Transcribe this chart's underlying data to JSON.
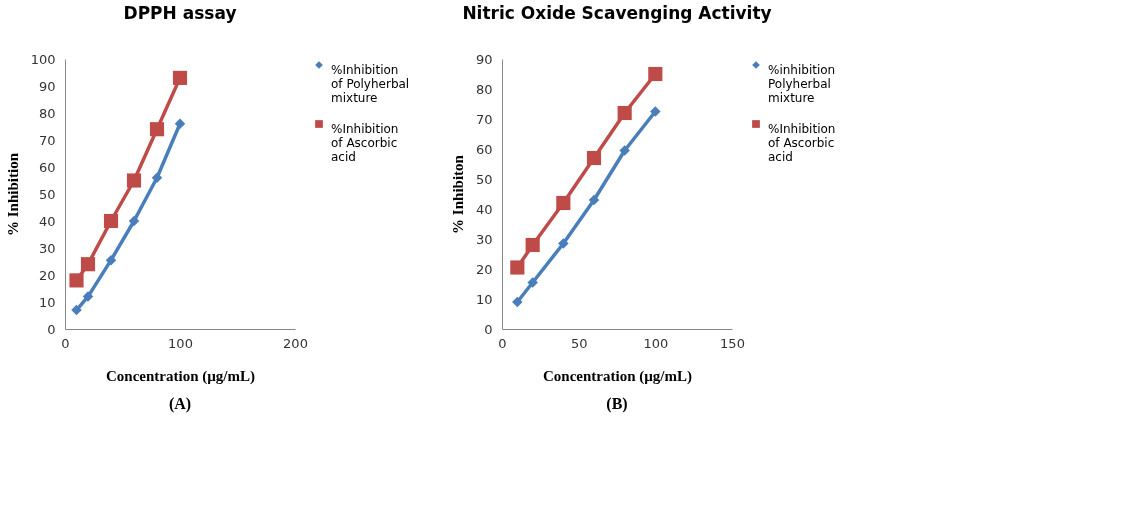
{
  "chart_data": [
    {
      "type": "line",
      "title": "DPPH assay",
      "xlabel": "Concentration (µg/mL)",
      "ylabel": "% Inhibition",
      "x": [
        10,
        20,
        40,
        60,
        80,
        100
      ],
      "series": [
        {
          "name": "%Inhibition of Polyherbal mixture",
          "color": "#4a7ebb",
          "marker": "diamond",
          "values": [
            7,
            12,
            25.5,
            40,
            56,
            76
          ]
        },
        {
          "name": "%Inhibition of Ascorbic acid",
          "color": "#be4b48",
          "marker": "square",
          "values": [
            18,
            24,
            40,
            55,
            74,
            93
          ]
        }
      ],
      "xlim": [
        0,
        200
      ],
      "xticks": [
        0,
        100,
        200
      ],
      "ylim": [
        0,
        100
      ],
      "yticks": [
        0,
        10,
        20,
        30,
        40,
        50,
        60,
        70,
        80,
        90,
        100
      ],
      "grid": false,
      "legend": "right",
      "line_style": "solid",
      "annotations": [
        "(A)"
      ]
    },
    {
      "type": "line",
      "title": "Nitric Oxide Scavenging Activity",
      "xlabel": "Concentration (µg/mL)",
      "ylabel": "% Inhibiton",
      "x": [
        10,
        20,
        40,
        60,
        80,
        100
      ],
      "series": [
        {
          "name": "%inhibition Polyherbal mixture",
          "color": "#4a7ebb",
          "marker": "diamond",
          "values": [
            9,
            15.5,
            28.5,
            43,
            59.5,
            72.5
          ]
        },
        {
          "name": "%Inhibition of Ascorbic acid",
          "color": "#be4b48",
          "marker": "square",
          "values": [
            20.5,
            28,
            42,
            57,
            72,
            85
          ]
        }
      ],
      "xlim": [
        0,
        150
      ],
      "xticks": [
        0,
        50,
        100,
        150
      ],
      "ylim": [
        0,
        90
      ],
      "yticks": [
        0,
        10,
        20,
        30,
        40,
        50,
        60,
        70,
        80,
        90
      ],
      "grid": false,
      "legend": "right",
      "line_style": "solid",
      "annotations": [
        "(B)"
      ]
    }
  ]
}
